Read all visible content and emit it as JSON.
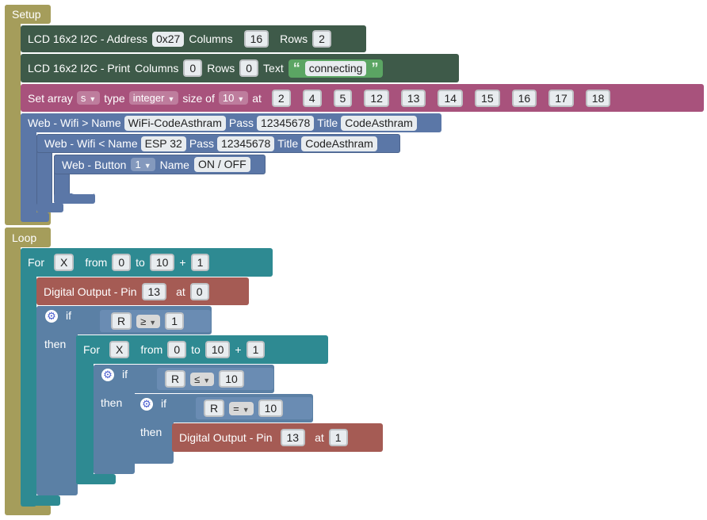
{
  "setup": {
    "label": "Setup",
    "lcd_init": {
      "label": "LCD 16x2 I2C - Address",
      "address": "0x27",
      "columns_label": "Columns",
      "columns": "16",
      "rows_label": "Rows",
      "rows": "2"
    },
    "lcd_print": {
      "label": "LCD 16x2 I2C - Print",
      "columns_label": "Columns",
      "columns": "0",
      "rows_label": "Rows",
      "rows": "0",
      "text_label": "Text",
      "text": "connecting"
    },
    "set_array": {
      "label": "Set array",
      "name": "s",
      "type_label": "type",
      "type": "integer",
      "size_label": "size of",
      "size": "10",
      "at_label": "at",
      "values": [
        "2",
        "4",
        "5",
        "12",
        "13",
        "14",
        "15",
        "16",
        "17",
        "18"
      ]
    },
    "wifi_ap": {
      "label": "Web - Wifi > Name",
      "name": "WiFi-CodeAsthram",
      "pass_label": "Pass",
      "pass": "12345678",
      "title_label": "Title",
      "title": "CodeAsthram"
    },
    "wifi_client": {
      "label": "Web - Wifi < Name",
      "name": "ESP 32",
      "pass_label": "Pass",
      "pass": "12345678",
      "title_label": "Title",
      "title": "CodeAsthram"
    },
    "web_button": {
      "label": "Web -  Button",
      "number": "1",
      "name_label": "Name",
      "name": "ON / OFF"
    }
  },
  "loop": {
    "label": "Loop",
    "for1": {
      "label": "For",
      "var": "X",
      "from_label": "from",
      "from": "0",
      "to_label": "to",
      "to": "10",
      "plus": "+",
      "step": "1"
    },
    "dout1": {
      "label": "Digital Output - Pin",
      "pin": "13",
      "at_label": "at",
      "value": "0"
    },
    "if1": {
      "if_label": "if",
      "then_label": "then",
      "var": "R",
      "op": "≥",
      "value": "1"
    },
    "for2": {
      "label": "For",
      "var": "X",
      "from_label": "from",
      "from": "0",
      "to_label": "to",
      "to": "10",
      "plus": "+",
      "step": "1"
    },
    "if2": {
      "if_label": "if",
      "then_label": "then",
      "var": "R",
      "op": "≤",
      "value": "10"
    },
    "if3": {
      "if_label": "if",
      "then_label": "then",
      "var": "R",
      "op": "=",
      "value": "10"
    },
    "dout2": {
      "label": "Digital Output - Pin",
      "pin": "13",
      "at_label": "at",
      "value": "1"
    }
  },
  "colors": {
    "event": "#a59d5b",
    "lcd": "#3e5a49",
    "array": "#a8527c",
    "web": "#5b77a7",
    "loop": "#2e8a92",
    "digital": "#a55b54",
    "logic": "#5b80a5"
  }
}
